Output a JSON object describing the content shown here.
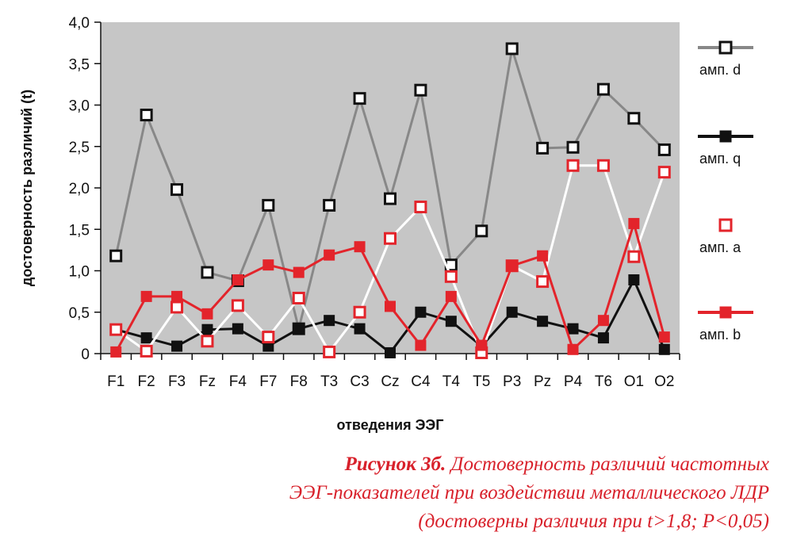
{
  "chart_data": {
    "type": "line",
    "categories": [
      "F1",
      "F2",
      "F3",
      "Fz",
      "F4",
      "F7",
      "F8",
      "T3",
      "C3",
      "Cz",
      "C4",
      "T4",
      "T5",
      "P3",
      "Pz",
      "P4",
      "T6",
      "O1",
      "O2"
    ],
    "ylabel": "достоверность различий (t)",
    "xlabel": "отведения ЭЭГ",
    "ylim": [
      0,
      4.0
    ],
    "yticks": [
      "0",
      "0,5",
      "1,0",
      "1,5",
      "2,0",
      "2,5",
      "3,0",
      "3,5",
      "4,0"
    ],
    "grid": false,
    "legend_position": "right",
    "series": [
      {
        "name": "амп. d",
        "color": "#888888",
        "marker": "square-open",
        "marker_color": "#111111",
        "values": [
          1.18,
          2.88,
          1.98,
          0.98,
          0.88,
          1.79,
          0.3,
          1.79,
          3.08,
          1.87,
          3.18,
          1.07,
          1.48,
          3.68,
          2.48,
          2.49,
          3.19,
          2.84,
          2.46
        ]
      },
      {
        "name": "амп. q",
        "color": "#111111",
        "marker": "square-filled",
        "marker_color": "#111111",
        "values": [
          0.29,
          0.19,
          0.09,
          0.29,
          0.3,
          0.09,
          0.3,
          0.4,
          0.3,
          0.01,
          0.5,
          0.39,
          0.09,
          0.5,
          0.39,
          0.3,
          0.19,
          0.89,
          0.05
        ]
      },
      {
        "name": "амп. a",
        "color": "#ffffff",
        "marker": "square-open",
        "marker_color": "#e3242b",
        "values": [
          0.29,
          0.03,
          0.56,
          0.15,
          0.58,
          0.2,
          0.67,
          0.02,
          0.5,
          1.39,
          1.77,
          0.93,
          0.01,
          1.06,
          0.87,
          2.27,
          2.27,
          1.17,
          2.19
        ]
      },
      {
        "name": "амп. b",
        "color": "#e3242b",
        "marker": "square-filled",
        "marker_color": "#e3242b",
        "values": [
          0.02,
          0.69,
          0.69,
          0.48,
          0.89,
          1.07,
          0.98,
          1.19,
          1.29,
          0.57,
          0.1,
          0.69,
          0.1,
          1.06,
          1.18,
          0.05,
          0.4,
          1.57,
          0.2
        ]
      }
    ]
  },
  "caption": {
    "bold": "Рисунок 3б.",
    "line1_rest": " Достоверность различий частотных",
    "line2": "ЭЭГ-показателей при воздействии металлического ЛДР",
    "line3": "(достоверны различия при t>1,8; P<0,05)"
  }
}
